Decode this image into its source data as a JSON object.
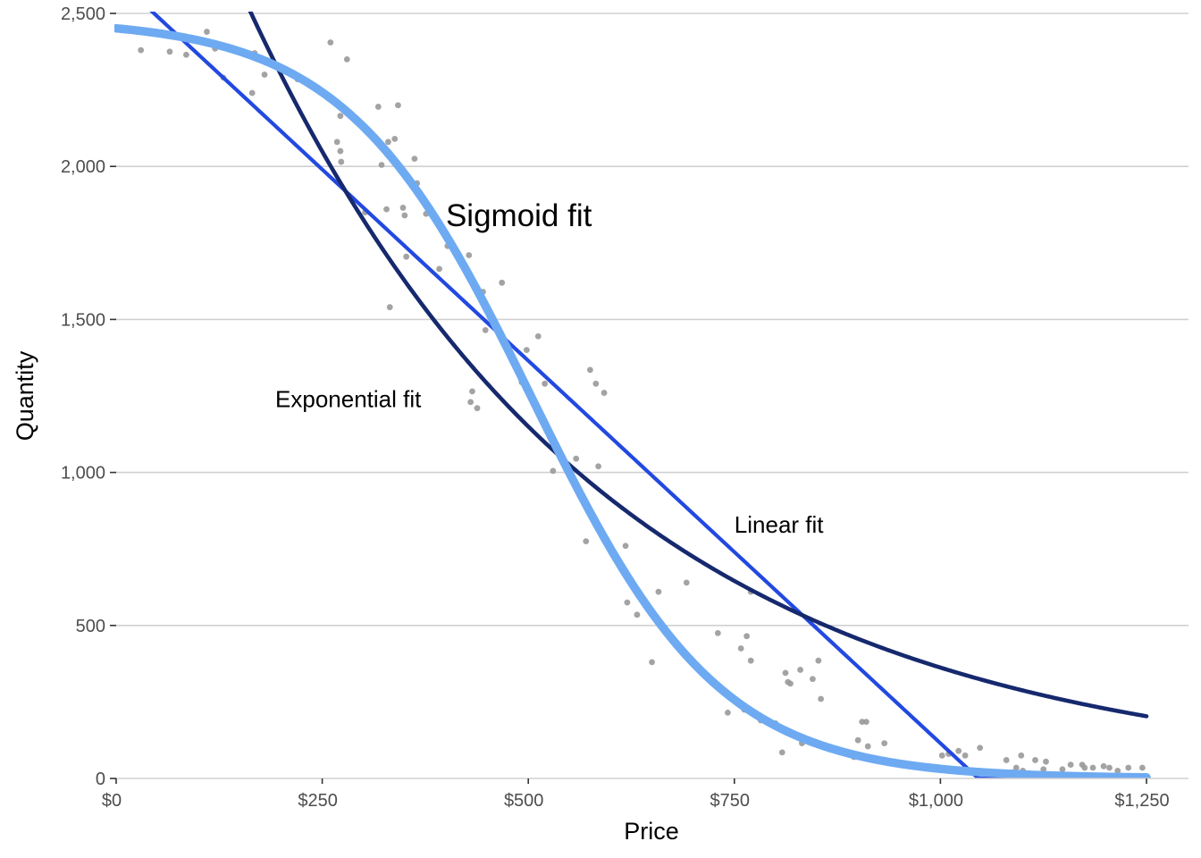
{
  "chart_data": {
    "type": "scatter",
    "title": "",
    "xlabel": "Price",
    "ylabel": "Quantity",
    "xlim": [
      0,
      1250
    ],
    "ylim": [
      0,
      2500
    ],
    "x_ticks": [
      {
        "value": 0,
        "label": "$0"
      },
      {
        "value": 250,
        "label": "$250"
      },
      {
        "value": 500,
        "label": "$500"
      },
      {
        "value": 750,
        "label": "$750"
      },
      {
        "value": 1000,
        "label": "$1,000"
      },
      {
        "value": 1250,
        "label": "$1,250"
      }
    ],
    "y_ticks": [
      {
        "value": 0,
        "label": "0"
      },
      {
        "value": 500,
        "label": "500"
      },
      {
        "value": 1000,
        "label": "1,000"
      },
      {
        "value": 1500,
        "label": "1,500"
      },
      {
        "value": 2000,
        "label": "2,000"
      },
      {
        "value": 2500,
        "label": "2,500"
      }
    ],
    "grid": "horizontal",
    "colors": {
      "points": "#999999",
      "linear": "#2249e0",
      "exponential": "#16296e",
      "sigmoid": "#6eaaf2",
      "grid": "#d0d0d0"
    },
    "points": [
      [
        30,
        2380
      ],
      [
        65,
        2375
      ],
      [
        85,
        2365
      ],
      [
        110,
        2440
      ],
      [
        120,
        2385
      ],
      [
        130,
        2290
      ],
      [
        165,
        2240
      ],
      [
        168,
        2370
      ],
      [
        172,
        2355
      ],
      [
        180,
        2300
      ],
      [
        220,
        2285
      ],
      [
        260,
        2405
      ],
      [
        260,
        2225
      ],
      [
        268,
        2080
      ],
      [
        272,
        2165
      ],
      [
        272,
        2050
      ],
      [
        273,
        2015
      ],
      [
        280,
        2350
      ],
      [
        302,
        1850
      ],
      [
        318,
        2195
      ],
      [
        322,
        2005
      ],
      [
        328,
        1860
      ],
      [
        330,
        2080
      ],
      [
        332,
        1540
      ],
      [
        338,
        2090
      ],
      [
        342,
        2200
      ],
      [
        348,
        1865
      ],
      [
        350,
        1840
      ],
      [
        352,
        1705
      ],
      [
        362,
        2025
      ],
      [
        365,
        1945
      ],
      [
        376,
        1845
      ],
      [
        392,
        1665
      ],
      [
        402,
        1740
      ],
      [
        428,
        1710
      ],
      [
        430,
        1230
      ],
      [
        432,
        1265
      ],
      [
        438,
        1210
      ],
      [
        445,
        1590
      ],
      [
        448,
        1465
      ],
      [
        468,
        1620
      ],
      [
        492,
        1295
      ],
      [
        498,
        1400
      ],
      [
        512,
        1445
      ],
      [
        520,
        1290
      ],
      [
        530,
        1005
      ],
      [
        558,
        1045
      ],
      [
        570,
        775
      ],
      [
        575,
        1335
      ],
      [
        582,
        1290
      ],
      [
        585,
        1020
      ],
      [
        592,
        1260
      ],
      [
        618,
        760
      ],
      [
        620,
        575
      ],
      [
        632,
        535
      ],
      [
        650,
        380
      ],
      [
        658,
        610
      ],
      [
        692,
        640
      ],
      [
        730,
        475
      ],
      [
        742,
        215
      ],
      [
        758,
        425
      ],
      [
        762,
        225
      ],
      [
        765,
        465
      ],
      [
        770,
        610
      ],
      [
        770,
        385
      ],
      [
        782,
        190
      ],
      [
        800,
        180
      ],
      [
        808,
        85
      ],
      [
        812,
        345
      ],
      [
        815,
        315
      ],
      [
        818,
        310
      ],
      [
        830,
        355
      ],
      [
        832,
        115
      ],
      [
        845,
        325
      ],
      [
        852,
        385
      ],
      [
        855,
        260
      ],
      [
        895,
        70
      ],
      [
        900,
        125
      ],
      [
        905,
        185
      ],
      [
        910,
        185
      ],
      [
        912,
        105
      ],
      [
        932,
        115
      ],
      [
        1002,
        75
      ],
      [
        1010,
        80
      ],
      [
        1022,
        90
      ],
      [
        1030,
        75
      ],
      [
        1048,
        100
      ],
      [
        1080,
        60
      ],
      [
        1088,
        20
      ],
      [
        1092,
        35
      ],
      [
        1098,
        75
      ],
      [
        1100,
        25
      ],
      [
        1115,
        60
      ],
      [
        1125,
        30
      ],
      [
        1128,
        55
      ],
      [
        1148,
        30
      ],
      [
        1158,
        45
      ],
      [
        1172,
        45
      ],
      [
        1175,
        35
      ],
      [
        1185,
        35
      ],
      [
        1198,
        40
      ],
      [
        1205,
        35
      ],
      [
        1215,
        25
      ],
      [
        1228,
        35
      ],
      [
        1245,
        35
      ]
    ],
    "series": [
      {
        "name": "Linear fit",
        "kind": "linear",
        "intercept": 2615,
        "slope": -2.5
      },
      {
        "name": "Exponential fit",
        "kind": "exponential",
        "a": 3650,
        "b": 0.00231
      },
      {
        "name": "Sigmoid fit",
        "kind": "sigmoid",
        "L": 2480,
        "k": 0.0088,
        "x0": 505
      }
    ],
    "annotations": [
      {
        "text": "Sigmoid fit",
        "x": 400,
        "y": 1840,
        "size": "large"
      },
      {
        "text": "Exponential fit",
        "x": 193,
        "y": 1240,
        "size": "normal"
      },
      {
        "text": "Linear fit",
        "x": 750,
        "y": 830,
        "size": "normal"
      }
    ]
  }
}
